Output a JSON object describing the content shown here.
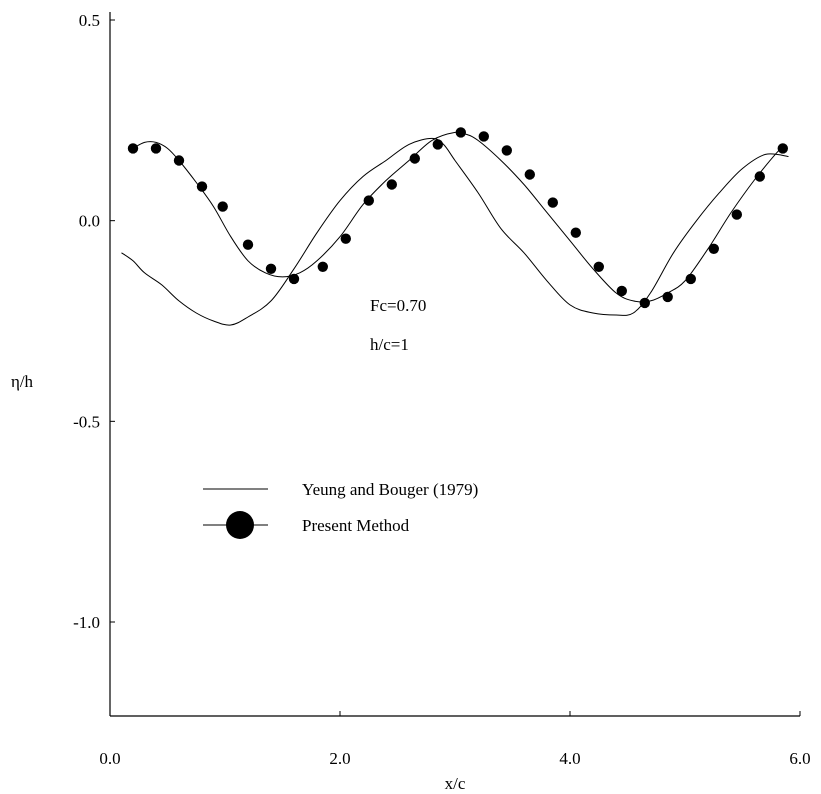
{
  "chart_data": {
    "type": "line",
    "xlabel": "x/c",
    "ylabel": "η/h",
    "xlim": [
      0.0,
      6.0
    ],
    "ylim": [
      -1.25,
      0.5
    ],
    "x_ticks": [
      {
        "value": 0.0,
        "label": "0.0"
      },
      {
        "value": 2.0,
        "label": "2.0"
      },
      {
        "value": 4.0,
        "label": "4.0"
      },
      {
        "value": 6.0,
        "label": "6.0"
      }
    ],
    "y_ticks": [
      {
        "value": 0.5,
        "label": "0.5"
      },
      {
        "value": 0.0,
        "label": "0.0"
      },
      {
        "value": -0.5,
        "label": "-0.5"
      },
      {
        "value": -1.0,
        "label": "-1.0"
      }
    ],
    "annotations": [
      "Fc=0.70",
      "h/c=1"
    ],
    "legend": {
      "placement": "center-left",
      "entries": [
        "Yeung and Bouger (1979)",
        "Present Method"
      ]
    },
    "grid": false,
    "series": [
      {
        "name": "Yeung and Bouger (1979)",
        "style": "line",
        "x": [
          0.1,
          0.2,
          0.3,
          0.45,
          0.6,
          0.75,
          0.9,
          1.05,
          1.2,
          1.4,
          1.6,
          1.8,
          2.0,
          2.2,
          2.4,
          2.6,
          2.8,
          2.9,
          3.0,
          3.2,
          3.4,
          3.6,
          3.8,
          4.0,
          4.2,
          4.4,
          4.55,
          4.7,
          4.9,
          5.1,
          5.3,
          5.5,
          5.7,
          5.9
        ],
        "y": [
          -0.08,
          -0.1,
          -0.13,
          -0.16,
          -0.2,
          -0.23,
          -0.25,
          -0.26,
          -0.24,
          -0.2,
          -0.12,
          -0.03,
          0.05,
          0.11,
          0.15,
          0.19,
          0.205,
          0.19,
          0.15,
          0.07,
          -0.02,
          -0.08,
          -0.15,
          -0.21,
          -0.23,
          -0.235,
          -0.23,
          -0.18,
          -0.08,
          0.0,
          0.07,
          0.13,
          0.165,
          0.16
        ]
      },
      {
        "name": "Present Method",
        "style": "line+marker",
        "x": [
          0.2,
          0.3,
          0.4,
          0.5,
          0.6,
          0.75,
          0.9,
          1.05,
          1.2,
          1.35,
          1.5,
          1.65,
          1.8,
          2.0,
          2.2,
          2.4,
          2.6,
          2.8,
          3.0,
          3.1,
          3.2,
          3.4,
          3.6,
          3.8,
          4.0,
          4.2,
          4.4,
          4.55,
          4.7,
          4.85,
          5.0,
          5.2,
          5.4,
          5.6,
          5.8,
          5.85
        ],
        "y": [
          0.18,
          0.195,
          0.195,
          0.18,
          0.15,
          0.095,
          0.035,
          -0.04,
          -0.1,
          -0.13,
          -0.14,
          -0.13,
          -0.1,
          -0.04,
          0.04,
          0.1,
          0.15,
          0.2,
          0.22,
          0.215,
          0.2,
          0.15,
          0.09,
          0.02,
          -0.05,
          -0.12,
          -0.18,
          -0.2,
          -0.2,
          -0.18,
          -0.15,
          -0.07,
          0.02,
          0.1,
          0.17,
          0.18
        ],
        "markers_x": [
          0.2,
          0.4,
          0.6,
          0.8,
          0.98,
          1.2,
          1.4,
          1.6,
          1.85,
          2.05,
          2.25,
          2.45,
          2.65,
          2.85,
          3.05,
          3.25,
          3.45,
          3.65,
          3.85,
          4.05,
          4.25,
          4.45,
          4.65,
          4.85,
          5.05,
          5.25,
          5.45,
          5.65,
          5.85
        ],
        "markers_y": [
          0.18,
          0.18,
          0.15,
          0.085,
          0.035,
          -0.06,
          -0.12,
          -0.145,
          -0.115,
          -0.045,
          0.05,
          0.09,
          0.155,
          0.19,
          0.22,
          0.21,
          0.175,
          0.115,
          0.045,
          -0.03,
          -0.115,
          -0.175,
          -0.205,
          -0.19,
          -0.145,
          -0.07,
          0.015,
          0.11,
          0.18
        ]
      }
    ]
  }
}
